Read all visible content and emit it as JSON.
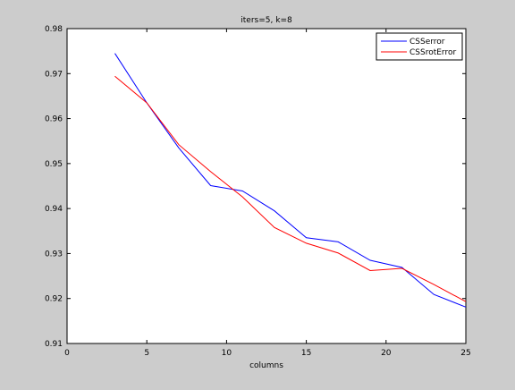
{
  "chart_data": {
    "type": "line",
    "title": "iters=5, k=8",
    "xlabel": "columns",
    "ylabel": "",
    "xlim": [
      0,
      25
    ],
    "ylim": [
      0.91,
      0.98
    ],
    "grid": false,
    "legend_position": "top-right",
    "x_ticks": [
      0,
      5,
      10,
      15,
      20,
      25
    ],
    "y_ticks": [
      0.91,
      0.92,
      0.93,
      0.94,
      0.95,
      0.96,
      0.97,
      0.98
    ],
    "x_tick_labels": [
      "0",
      "5",
      "10",
      "15",
      "20",
      "25"
    ],
    "y_tick_labels": [
      "0.91",
      "0.92",
      "0.93",
      "0.94",
      "0.95",
      "0.96",
      "0.97",
      "0.98"
    ],
    "x": [
      3,
      5,
      7,
      9,
      11,
      13,
      15,
      17,
      19,
      21,
      23,
      25
    ],
    "series": [
      {
        "name": "CSSerror",
        "color": "#0000ff",
        "values": [
          0.9745,
          0.9635,
          0.9535,
          0.9451,
          0.9439,
          0.9395,
          0.9335,
          0.9326,
          0.9285,
          0.9269,
          0.9209,
          0.9181
        ]
      },
      {
        "name": "CSSrotError",
        "color": "#ff0000",
        "values": [
          0.9694,
          0.9635,
          0.9542,
          0.9482,
          0.9426,
          0.9358,
          0.9323,
          0.9301,
          0.9262,
          0.9267,
          0.9231,
          0.9193
        ]
      }
    ]
  }
}
